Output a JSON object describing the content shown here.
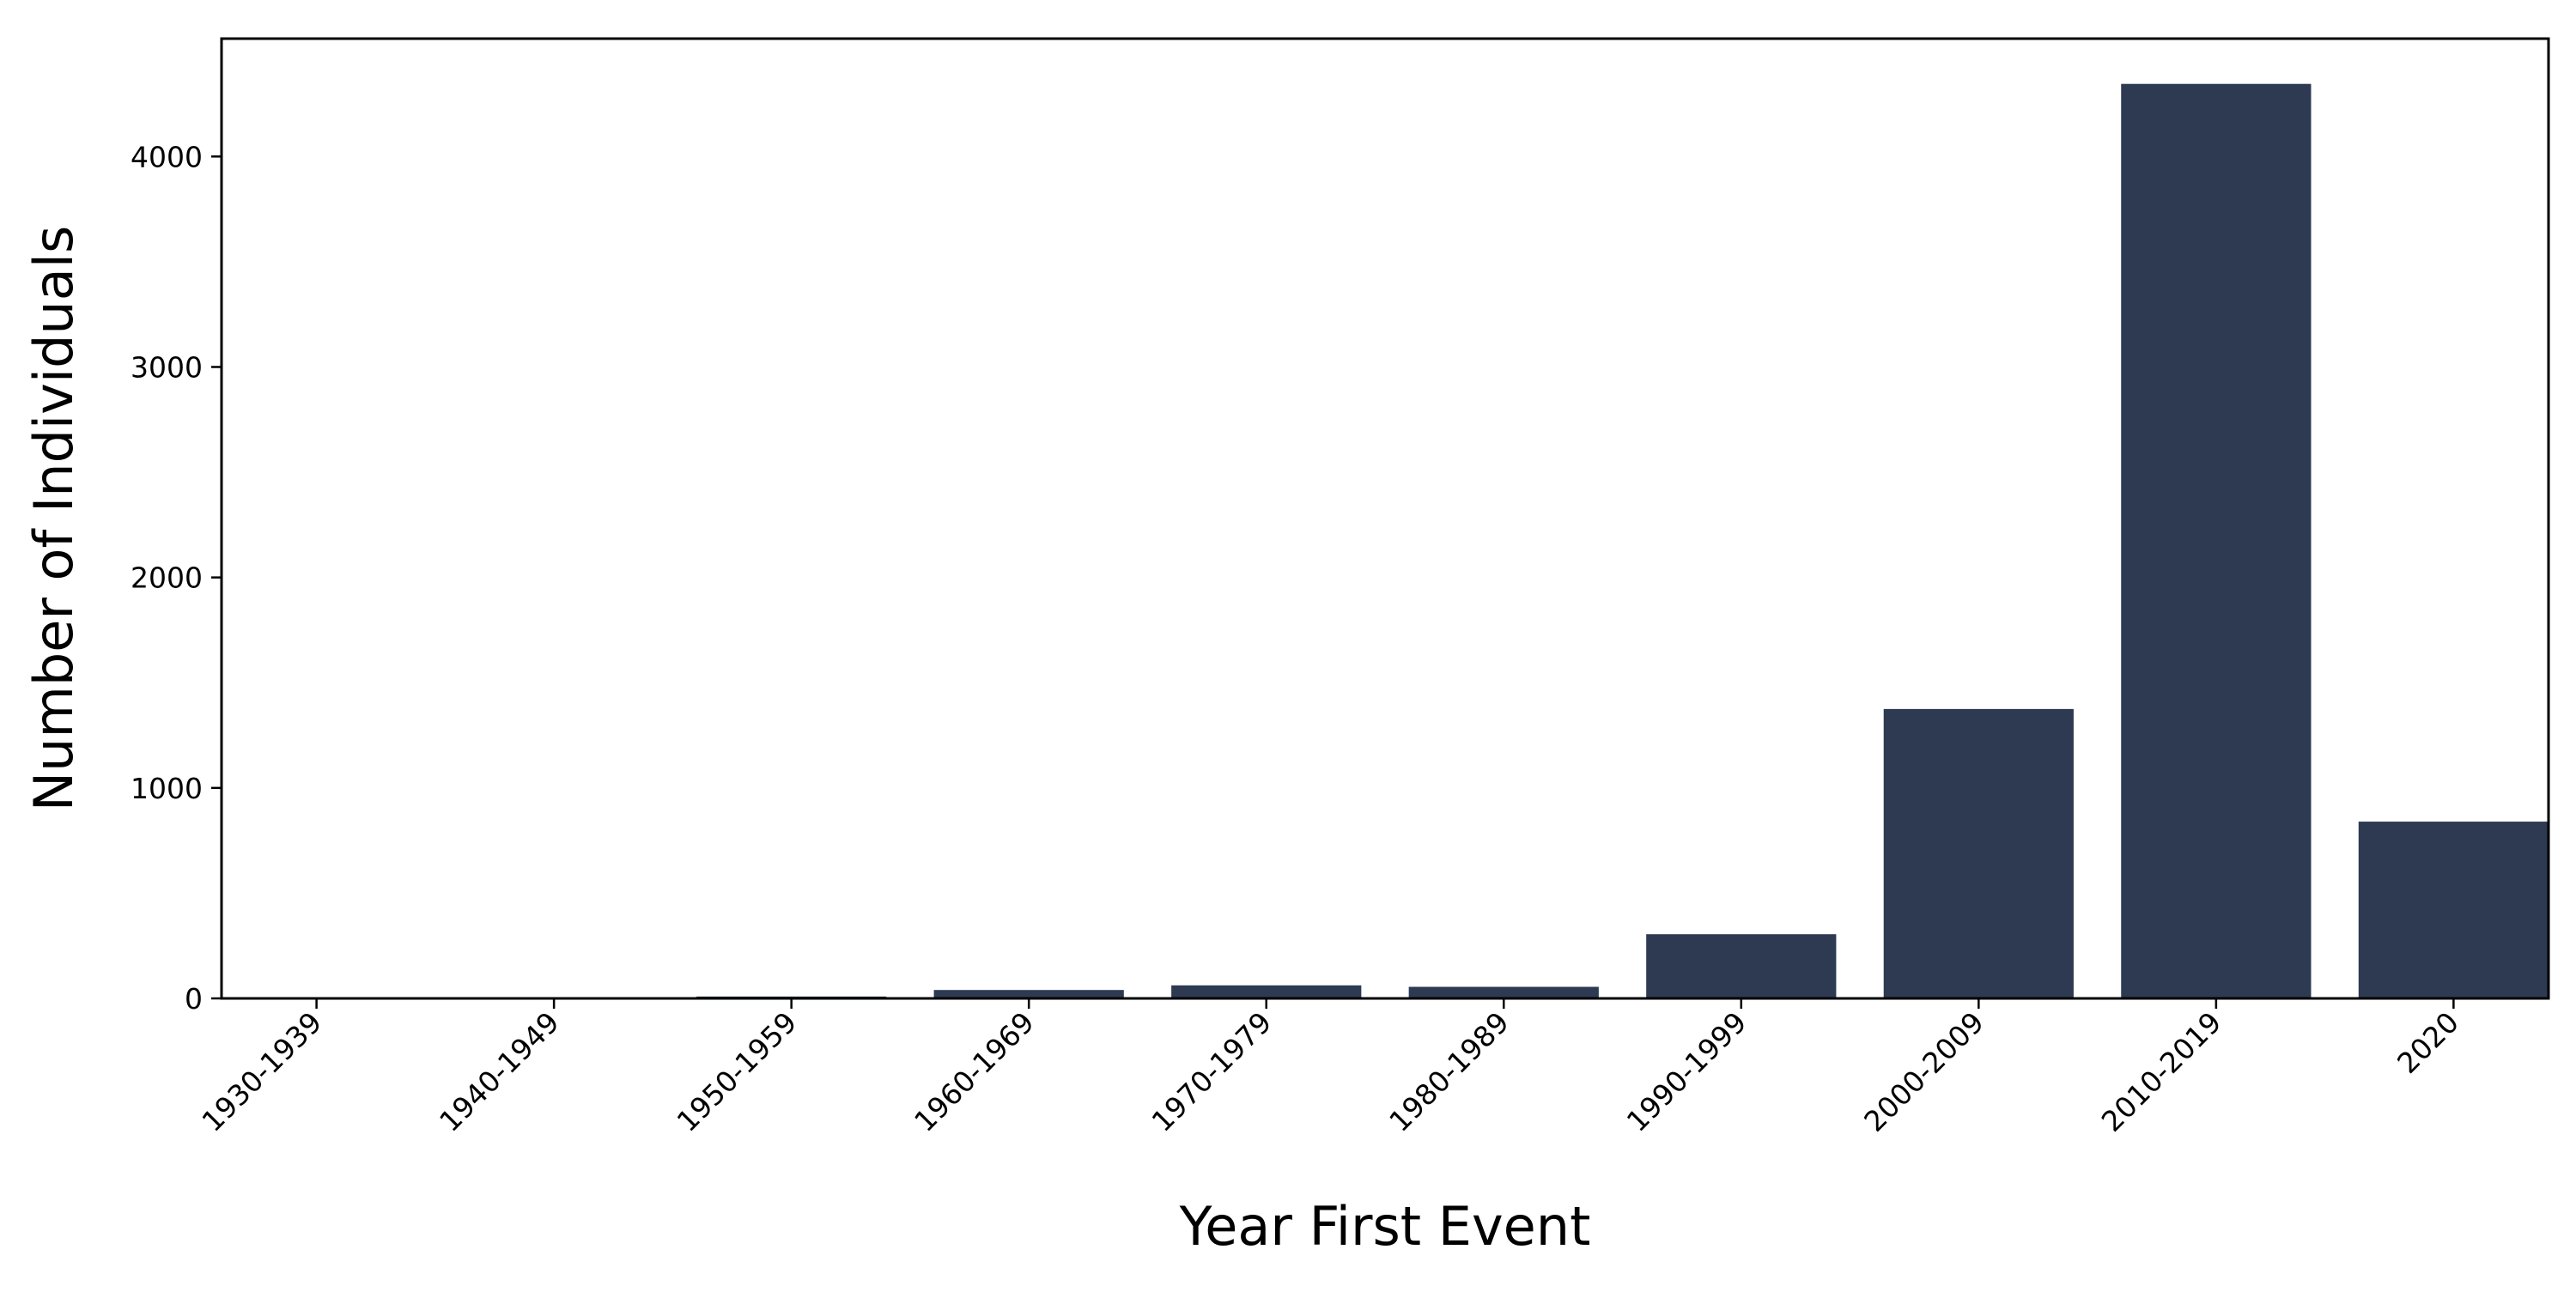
{
  "chart_data": {
    "type": "bar",
    "title": "",
    "xlabel": "Year First Event",
    "ylabel": "Number of Individuals",
    "categories": [
      "1930-1939",
      "1940-1949",
      "1950-1959",
      "1960-1969",
      "1970-1979",
      "1980-1989",
      "1990-1999",
      "2000-2009",
      "2010-2019",
      "2020"
    ],
    "values": [
      1,
      2,
      9,
      40,
      62,
      55,
      305,
      1375,
      4345,
      840
    ],
    "ylim": [
      0,
      4560
    ],
    "yticks": [
      "0",
      "1000",
      "2000",
      "3000",
      "4000"
    ],
    "grid": false,
    "bar_color": "#2d3a52"
  }
}
